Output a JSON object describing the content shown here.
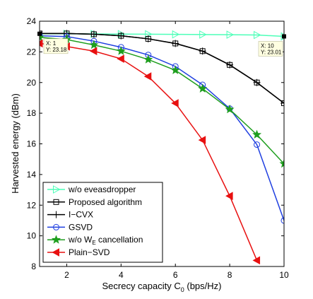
{
  "chart_data": {
    "type": "line",
    "title": "",
    "xlabel_main": "Secrecy capacity C",
    "xlabel_sub": "0",
    "xlabel_unit": " (bps/Hz)",
    "ylabel": "Harvested energy (dBm)",
    "xlim": [
      1,
      10
    ],
    "ylim": [
      8,
      24
    ],
    "x_ticks": [
      2,
      4,
      6,
      8,
      10
    ],
    "y_ticks": [
      8,
      10,
      12,
      14,
      16,
      18,
      20,
      22,
      24
    ],
    "grid": false,
    "legend_position": "bottom-left",
    "series": [
      {
        "name": "w/o eveasdropper",
        "name_main": "w/o eveasdropper",
        "name_sub": "",
        "name_rest": "",
        "color": "#4dffb8",
        "marker": "triangle-right",
        "x": [
          1,
          2,
          3,
          4,
          5,
          6,
          7,
          8,
          9,
          10
        ],
        "y": [
          23.18,
          23.18,
          23.17,
          23.16,
          23.15,
          23.14,
          23.13,
          23.12,
          23.1,
          23.01
        ]
      },
      {
        "name": "Proposed algorithm",
        "name_main": "Proposed algorithm",
        "name_sub": "",
        "name_rest": "",
        "color": "#000000",
        "marker": "square",
        "x": [
          1,
          2,
          3,
          4,
          5,
          6,
          7,
          8,
          9,
          10
        ],
        "y": [
          23.2,
          23.2,
          23.15,
          23.05,
          22.85,
          22.55,
          22.05,
          21.15,
          20.0,
          18.65
        ]
      },
      {
        "name": "I-CVX",
        "name_main": "I−CVX",
        "name_sub": "",
        "name_rest": "",
        "color": "#000000",
        "marker": "plus",
        "x": [
          1,
          2,
          3,
          4,
          5,
          6,
          7,
          8,
          9,
          10
        ],
        "y": [
          23.2,
          23.2,
          23.15,
          23.05,
          22.85,
          22.55,
          22.05,
          21.15,
          20.0,
          18.65
        ]
      },
      {
        "name": "GSVD",
        "name_main": "GSVD",
        "name_sub": "",
        "name_rest": "",
        "color": "#1f3fe0",
        "marker": "circle",
        "x": [
          1,
          2,
          3,
          4,
          5,
          6,
          7,
          8,
          9,
          10
        ],
        "y": [
          23.05,
          23.0,
          22.7,
          22.3,
          21.8,
          21.05,
          19.85,
          18.3,
          15.95,
          11.0
        ]
      },
      {
        "name": "w/o WE cancellation",
        "name_main": "w/o W",
        "name_sub": "E",
        "name_rest": " cancellation",
        "color": "#1e9e1e",
        "marker": "star",
        "x": [
          1,
          2,
          3,
          4,
          5,
          6,
          7,
          8,
          9,
          10
        ],
        "y": [
          22.95,
          22.8,
          22.45,
          22.05,
          21.5,
          20.8,
          19.6,
          18.25,
          16.6,
          14.7
        ]
      },
      {
        "name": "Plain-SVD",
        "name_main": "Plain−SVD",
        "name_sub": "",
        "name_rest": "",
        "color": "#e81010",
        "marker": "triangle-left",
        "x": [
          1,
          2,
          3,
          4,
          5,
          6,
          7,
          8,
          9
        ],
        "y": [
          22.55,
          22.35,
          22.05,
          21.55,
          20.4,
          18.65,
          16.25,
          12.6,
          8.4
        ]
      }
    ],
    "annotations": [
      {
        "x_text": "X: 1",
        "y_text": "Y: 23.18",
        "x": 1,
        "y": 23.18
      },
      {
        "x_text": "X: 10",
        "y_text": "Y: 23.01",
        "x": 10,
        "y": 23.01
      }
    ]
  }
}
